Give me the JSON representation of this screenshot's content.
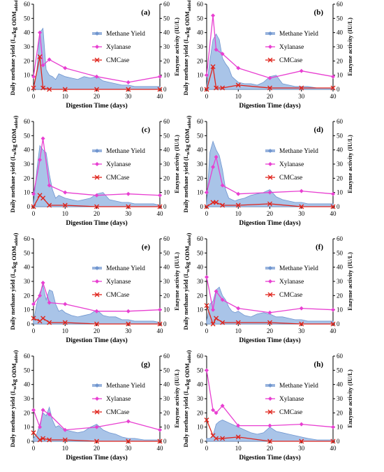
{
  "colors": {
    "methane_fill": "#a9c4e8",
    "methane_line": "#6f95cf",
    "xylanase": "#e83fd1",
    "cmcase": "#e0231b",
    "axis": "#000000"
  },
  "shared": {
    "ylabel_left_main": "Daily methane yield (L",
    "ylabel_left_sub1": "n",
    "ylabel_left_mid": "/kg ODM",
    "ylabel_left_sub2": "added",
    "ylabel_left_end": ")",
    "ylabel_right": "Enzyme activity (IU/L)",
    "xlabel": "Digestion Time (days)",
    "legend": [
      "Methane Yield",
      "Xylanase",
      "CMCase"
    ],
    "x_ticks": [
      0,
      10,
      20,
      30,
      40
    ],
    "y_ticks": [
      0,
      10,
      20,
      30,
      40,
      50,
      60
    ],
    "xlim": [
      0,
      40
    ],
    "ylim": [
      0,
      60
    ]
  },
  "chart_data": [
    {
      "type": "area",
      "panel": "(a)",
      "series": [
        {
          "name": "Methane Yield",
          "x": [
            0,
            1,
            2,
            3,
            4,
            5,
            6,
            7,
            8,
            9,
            10,
            12,
            14,
            16,
            18,
            20,
            22,
            24,
            26,
            28,
            30,
            32,
            35,
            38,
            40
          ],
          "values": [
            2,
            12,
            40,
            43,
            14,
            10,
            9,
            7,
            11,
            10,
            9,
            8,
            7,
            9,
            8,
            9,
            6,
            5,
            4,
            3,
            3,
            2,
            2,
            2,
            2
          ]
        },
        {
          "name": "Xylanase",
          "x": [
            0,
            2,
            3,
            5,
            10,
            20,
            30,
            40
          ],
          "values": [
            9,
            40,
            17,
            21,
            15,
            9,
            5,
            9
          ]
        },
        {
          "name": "CMCase",
          "x": [
            0,
            2,
            3,
            5,
            10,
            20,
            30,
            40
          ],
          "values": [
            1,
            23,
            1,
            0,
            0,
            0,
            0,
            0
          ]
        }
      ]
    },
    {
      "type": "area",
      "panel": "(b)",
      "series": [
        {
          "name": "Methane Yield",
          "x": [
            0,
            1,
            2,
            3,
            4,
            5,
            6,
            7,
            8,
            9,
            10,
            12,
            14,
            16,
            18,
            20,
            22,
            24,
            26,
            28,
            30,
            32,
            35,
            38,
            40
          ],
          "values": [
            2,
            20,
            35,
            39,
            35,
            22,
            18,
            15,
            9,
            7,
            5,
            4,
            4,
            3,
            5,
            9,
            10,
            4,
            3,
            2,
            2,
            2,
            1,
            1,
            1
          ]
        },
        {
          "name": "Xylanase",
          "x": [
            0,
            2,
            3,
            5,
            10,
            20,
            30,
            40
          ],
          "values": [
            10,
            52,
            28,
            25,
            15,
            8,
            13,
            9
          ]
        },
        {
          "name": "CMCase",
          "x": [
            0,
            2,
            3,
            5,
            10,
            20,
            30,
            40
          ],
          "values": [
            0,
            16,
            1,
            1,
            3,
            1,
            1,
            1
          ]
        }
      ]
    },
    {
      "type": "area",
      "panel": "(c)",
      "series": [
        {
          "name": "Methane Yield",
          "x": [
            0,
            1,
            2,
            3,
            4,
            5,
            6,
            7,
            8,
            9,
            10,
            12,
            14,
            16,
            18,
            20,
            22,
            24,
            26,
            28,
            30,
            32,
            35,
            38,
            40
          ],
          "values": [
            2,
            25,
            43,
            40,
            38,
            23,
            12,
            6,
            8,
            7,
            6,
            5,
            4,
            5,
            6,
            9,
            10,
            5,
            4,
            3,
            3,
            2,
            2,
            2,
            1
          ]
        },
        {
          "name": "Xylanase",
          "x": [
            0,
            2,
            3,
            5,
            10,
            20,
            30,
            40
          ],
          "values": [
            9,
            33,
            48,
            15,
            10,
            8,
            9,
            8
          ]
        },
        {
          "name": "CMCase",
          "x": [
            0,
            2,
            3,
            5,
            10,
            20,
            30,
            40
          ],
          "values": [
            0,
            8,
            6,
            1,
            1,
            0,
            0,
            0
          ]
        }
      ]
    },
    {
      "type": "area",
      "panel": "(d)",
      "series": [
        {
          "name": "Methane Yield",
          "x": [
            0,
            1,
            2,
            3,
            4,
            5,
            6,
            7,
            8,
            9,
            10,
            12,
            14,
            16,
            18,
            20,
            22,
            24,
            26,
            28,
            30,
            32,
            35,
            38,
            40
          ],
          "values": [
            2,
            38,
            46,
            40,
            36,
            26,
            12,
            6,
            5,
            4,
            5,
            6,
            8,
            9,
            10,
            12,
            7,
            5,
            4,
            3,
            3,
            2,
            2,
            2,
            2
          ]
        },
        {
          "name": "Xylanase",
          "x": [
            0,
            2,
            3,
            5,
            10,
            20,
            30,
            40
          ],
          "values": [
            10,
            28,
            35,
            15,
            9,
            10,
            11,
            9
          ]
        },
        {
          "name": "CMCase",
          "x": [
            0,
            2,
            3,
            5,
            10,
            20,
            30,
            40
          ],
          "values": [
            0,
            3,
            3,
            1,
            1,
            2,
            0,
            0
          ]
        }
      ]
    },
    {
      "type": "area",
      "panel": "(e)",
      "series": [
        {
          "name": "Methane Yield",
          "x": [
            0,
            1,
            2,
            3,
            4,
            5,
            6,
            7,
            8,
            9,
            10,
            12,
            14,
            16,
            18,
            20,
            22,
            24,
            26,
            28,
            30,
            32,
            35,
            38,
            40
          ],
          "values": [
            2,
            14,
            22,
            27,
            17,
            24,
            23,
            14,
            9,
            10,
            8,
            6,
            5,
            6,
            7,
            10,
            6,
            5,
            5,
            3,
            3,
            2,
            2,
            2,
            1
          ]
        },
        {
          "name": "Xylanase",
          "x": [
            0,
            2,
            3,
            5,
            10,
            20,
            30,
            40
          ],
          "values": [
            14,
            20,
            29,
            15,
            14,
            9,
            9,
            10
          ]
        },
        {
          "name": "CMCase",
          "x": [
            0,
            2,
            3,
            5,
            10,
            20,
            30,
            40
          ],
          "values": [
            4,
            2,
            4,
            1,
            1,
            0,
            0,
            0
          ]
        }
      ]
    },
    {
      "type": "area",
      "panel": "(f)",
      "series": [
        {
          "name": "Methane Yield",
          "x": [
            0,
            1,
            2,
            3,
            4,
            5,
            6,
            7,
            8,
            9,
            10,
            12,
            14,
            16,
            18,
            20,
            22,
            24,
            26,
            28,
            30,
            32,
            35,
            38,
            40
          ],
          "values": [
            2,
            14,
            16,
            24,
            26,
            20,
            17,
            12,
            9,
            8,
            9,
            6,
            5,
            7,
            8,
            7,
            5,
            5,
            4,
            3,
            3,
            2,
            2,
            2,
            2
          ]
        },
        {
          "name": "Xylanase",
          "x": [
            0,
            2,
            3,
            5,
            10,
            20,
            30,
            40
          ],
          "values": [
            33,
            10,
            23,
            17,
            11,
            8,
            11,
            10
          ]
        },
        {
          "name": "CMCase",
          "x": [
            0,
            2,
            3,
            5,
            10,
            20,
            30,
            40
          ],
          "values": [
            13,
            0,
            4,
            1,
            1,
            1,
            0,
            0
          ]
        }
      ]
    },
    {
      "type": "area",
      "panel": "(g)",
      "series": [
        {
          "name": "Methane Yield",
          "x": [
            0,
            1,
            2,
            3,
            4,
            5,
            6,
            7,
            8,
            9,
            10,
            12,
            14,
            16,
            18,
            20,
            22,
            24,
            26,
            28,
            30,
            32,
            35,
            38,
            40
          ],
          "values": [
            2,
            5,
            12,
            20,
            18,
            24,
            15,
            10,
            11,
            9,
            8,
            7,
            6,
            7,
            10,
            12,
            8,
            6,
            5,
            3,
            2,
            2,
            1,
            1,
            1
          ]
        },
        {
          "name": "Xylanase",
          "x": [
            0,
            2,
            3,
            5,
            10,
            20,
            30,
            40
          ],
          "values": [
            22,
            10,
            22,
            19,
            8,
            10,
            14,
            8
          ]
        },
        {
          "name": "CMCase",
          "x": [
            0,
            2,
            3,
            5,
            10,
            20,
            30,
            40
          ],
          "values": [
            6,
            1,
            2,
            1,
            1,
            0,
            0,
            0
          ]
        }
      ]
    },
    {
      "type": "area",
      "panel": "(h)",
      "series": [
        {
          "name": "Methane Yield",
          "x": [
            0,
            1,
            2,
            3,
            4,
            5,
            6,
            7,
            8,
            9,
            10,
            12,
            14,
            16,
            18,
            20,
            22,
            24,
            26,
            28,
            30,
            32,
            35,
            38,
            40
          ],
          "values": [
            2,
            2,
            4,
            12,
            14,
            15,
            14,
            13,
            12,
            11,
            10,
            8,
            6,
            5,
            6,
            10,
            7,
            6,
            5,
            4,
            3,
            2,
            1,
            1,
            1
          ]
        },
        {
          "name": "Xylanase",
          "x": [
            0,
            2,
            3,
            5,
            10,
            20,
            30,
            40
          ],
          "values": [
            50,
            22,
            20,
            25,
            11,
            11,
            12,
            10
          ]
        },
        {
          "name": "CMCase",
          "x": [
            0,
            2,
            3,
            5,
            10,
            20,
            30,
            40
          ],
          "values": [
            15,
            4,
            2,
            2,
            3,
            0,
            0,
            0
          ]
        }
      ]
    }
  ]
}
